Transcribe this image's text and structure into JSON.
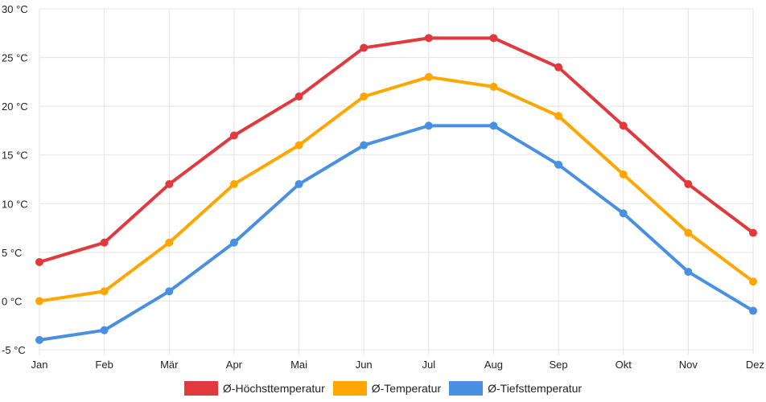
{
  "chart_data": {
    "type": "line",
    "categories": [
      "Jan",
      "Feb",
      "Mär",
      "Apr",
      "Mai",
      "Jun",
      "Jul",
      "Aug",
      "Sep",
      "Okt",
      "Nov",
      "Dez"
    ],
    "ylim": [
      -5,
      30
    ],
    "yticks": [
      "-5 °C",
      "0 °C",
      "5 °C",
      "10 °C",
      "15 °C",
      "20 °C",
      "25 °C",
      "30 °C"
    ],
    "ytick_values": [
      -5,
      0,
      5,
      10,
      15,
      20,
      25,
      30
    ],
    "grid": true,
    "legend_position": "bottom",
    "series": [
      {
        "name": "Ø-Höchsttemperatur",
        "color": "#e0393e",
        "values": [
          4,
          6,
          12,
          17,
          21,
          26,
          27,
          27,
          24,
          18,
          12,
          7
        ]
      },
      {
        "name": "Ø-Temperatur",
        "color": "#ffa600",
        "values": [
          0,
          1,
          6,
          12,
          16,
          21,
          23,
          22,
          19,
          13,
          7,
          2
        ]
      },
      {
        "name": "Ø-Tiefsttemperatur",
        "color": "#4a90e2",
        "values": [
          -4,
          -3,
          1,
          6,
          12,
          16,
          18,
          18,
          14,
          9,
          3,
          -1
        ]
      }
    ]
  }
}
